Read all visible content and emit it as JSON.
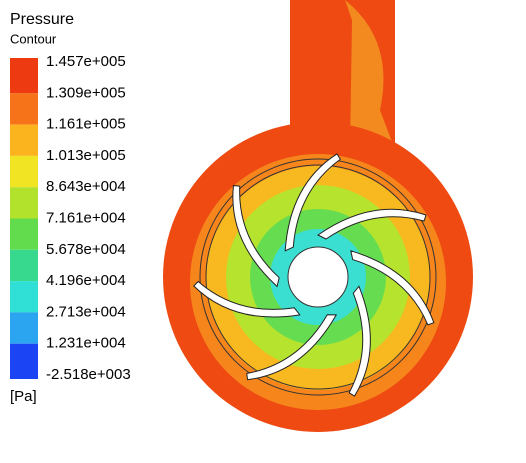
{
  "legend": {
    "title": "Pressure",
    "subtitle": "Contour",
    "labels": [
      "1.457e+005",
      "1.309e+005",
      "1.161e+005",
      "1.013e+005",
      "8.643e+004",
      "7.161e+004",
      "5.678e+004",
      "4.196e+004",
      "2.713e+004",
      "1.231e+004",
      "-2.518e+003"
    ],
    "colors": [
      "#ee3a10",
      "#f7731a",
      "#fbb41e",
      "#f1e422",
      "#b2e22c",
      "#62dc4c",
      "#36d98e",
      "#30dfd6",
      "#2ba5f0",
      "#1b45f4"
    ],
    "unit": "[Pa]"
  }
}
